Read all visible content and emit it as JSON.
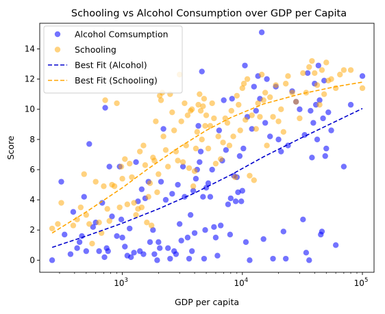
{
  "chart_data": {
    "type": "scatter",
    "title": "Schooling vs Alcohol Consumption over GDP per Capita",
    "xlabel": "GDP per capita",
    "ylabel": "Score",
    "xscale": "log",
    "xlim": [
      205,
      125000
    ],
    "ylim": [
      -0.8,
      15.7
    ],
    "grid": false,
    "legend_position": "top-left",
    "x_ticks": [
      {
        "value": 1000,
        "base": "10",
        "exp": "3"
      },
      {
        "value": 10000,
        "base": "10",
        "exp": "4"
      },
      {
        "value": 100000,
        "base": "10",
        "exp": "5"
      }
    ],
    "y_ticks": [
      "0",
      "2",
      "4",
      "6",
      "8",
      "10",
      "12",
      "14"
    ],
    "series": [
      {
        "name": "Alcohol Comsumption",
        "kind": "scatter",
        "color": "#0000ff",
        "points": [
          [
            260,
            0
          ],
          [
            310,
            5.2
          ],
          [
            330,
            1.7
          ],
          [
            370,
            0.4
          ],
          [
            390,
            3.2
          ],
          [
            420,
            0.8
          ],
          [
            440,
            1.2
          ],
          [
            460,
            1.6
          ],
          [
            480,
            4.2
          ],
          [
            500,
            0.6
          ],
          [
            530,
            7.7
          ],
          [
            570,
            2.2
          ],
          [
            600,
            2.5
          ],
          [
            640,
            0.6
          ],
          [
            680,
            3.8
          ],
          [
            710,
            0.2
          ],
          [
            720,
            10.1
          ],
          [
            740,
            0.8
          ],
          [
            760,
            0.6
          ],
          [
            780,
            6.2
          ],
          [
            820,
            2.9
          ],
          [
            900,
            1.6
          ],
          [
            950,
            6.2
          ],
          [
            980,
            2.7
          ],
          [
            1000,
            1.5
          ],
          [
            1050,
            0.9
          ],
          [
            1100,
            0.3
          ],
          [
            1150,
            2.1
          ],
          [
            1180,
            0.2
          ],
          [
            1250,
            0.5
          ],
          [
            1300,
            6.5
          ],
          [
            1350,
            3.9
          ],
          [
            1400,
            0.6
          ],
          [
            1450,
            4.7
          ],
          [
            1500,
            0.4
          ],
          [
            1550,
            4.1
          ],
          [
            1650,
            5.2
          ],
          [
            1700,
            1.2
          ],
          [
            1800,
            2.0
          ],
          [
            1850,
            0.4
          ],
          [
            1950,
            0
          ],
          [
            2000,
            1.2
          ],
          [
            2050,
            0.8
          ],
          [
            2100,
            5.2
          ],
          [
            2200,
            8.7
          ],
          [
            2300,
            4.0
          ],
          [
            2400,
            0.8
          ],
          [
            2500,
            0.1
          ],
          [
            2600,
            4.4
          ],
          [
            2700,
            0.6
          ],
          [
            2800,
            0.4
          ],
          [
            2900,
            5.0
          ],
          [
            3000,
            2.4
          ],
          [
            3100,
            1.3
          ],
          [
            3200,
            6.2
          ],
          [
            3300,
            4.2
          ],
          [
            3500,
            1.5
          ],
          [
            3600,
            0.1
          ],
          [
            3700,
            3.0
          ],
          [
            3800,
            0.6
          ],
          [
            3900,
            4.6
          ],
          [
            4000,
            1.8
          ],
          [
            4100,
            5.4
          ],
          [
            4200,
            6.0
          ],
          [
            4300,
            8.9
          ],
          [
            4400,
            6.5
          ],
          [
            4500,
            7.2
          ],
          [
            4600,
            12.5
          ],
          [
            4700,
            4.2
          ],
          [
            4800,
            0.1
          ],
          [
            4900,
            2.0
          ],
          [
            5000,
            4.8
          ],
          [
            5200,
            5.1
          ],
          [
            5400,
            4.2
          ],
          [
            5600,
            6.0
          ],
          [
            5800,
            2.2
          ],
          [
            6000,
            1.5
          ],
          [
            6200,
            0.3
          ],
          [
            6400,
            8.6
          ],
          [
            6600,
            2.3
          ],
          [
            6800,
            6.6
          ],
          [
            7000,
            10.6
          ],
          [
            7300,
            7.3
          ],
          [
            7600,
            3.7
          ],
          [
            7900,
            1.7
          ],
          [
            8000,
            4.1
          ],
          [
            8200,
            10.7
          ],
          [
            8500,
            5.6
          ],
          [
            8800,
            3.9
          ],
          [
            9000,
            5.5
          ],
          [
            9200,
            4.5
          ],
          [
            9500,
            6.9
          ],
          [
            9800,
            3.9
          ],
          [
            10000,
            4.6
          ],
          [
            10200,
            7.4
          ],
          [
            10500,
            12.9
          ],
          [
            10700,
            1.2
          ],
          [
            11000,
            9.5
          ],
          [
            11500,
            0
          ],
          [
            12000,
            8.7
          ],
          [
            12500,
            11.5
          ],
          [
            13000,
            9.9
          ],
          [
            13500,
            12.2
          ],
          [
            14000,
            10.7
          ],
          [
            14500,
            15.1
          ],
          [
            15000,
            1.4
          ],
          [
            15500,
            9.1
          ],
          [
            16000,
            12.0
          ],
          [
            17000,
            8.2
          ],
          [
            18000,
            0.1
          ],
          [
            19000,
            11.5
          ],
          [
            20000,
            8.0
          ],
          [
            21000,
            7.2
          ],
          [
            22000,
            1.9
          ],
          [
            23000,
            0.1
          ],
          [
            24000,
            7.6
          ],
          [
            26000,
            11.2
          ],
          [
            28000,
            10.5
          ],
          [
            30000,
            10.0
          ],
          [
            32000,
            2.7
          ],
          [
            33000,
            8.3
          ],
          [
            34000,
            0.5
          ],
          [
            35000,
            12.4
          ],
          [
            36000,
            0
          ],
          [
            37000,
            9.9
          ],
          [
            38000,
            6.8
          ],
          [
            39000,
            9.1
          ],
          [
            40000,
            11.7
          ],
          [
            41000,
            10.3
          ],
          [
            42000,
            8.0
          ],
          [
            43000,
            12.9
          ],
          [
            44000,
            10.6
          ],
          [
            45000,
            1.7
          ],
          [
            46000,
            1.9
          ],
          [
            47000,
            9.4
          ],
          [
            48000,
            11.9
          ],
          [
            49000,
            6.9
          ],
          [
            50000,
            7.4
          ],
          [
            52000,
            9.8
          ],
          [
            55000,
            8.6
          ],
          [
            60000,
            1.0
          ],
          [
            70000,
            6.2
          ],
          [
            80000,
            10.3
          ],
          [
            100000,
            12.2
          ]
        ]
      },
      {
        "name": "Schooling",
        "kind": "scatter",
        "color": "#ffa500",
        "points": [
          [
            260,
            2.1
          ],
          [
            290,
            2.4
          ],
          [
            310,
            3.8
          ],
          [
            390,
            2.3
          ],
          [
            420,
            2.7
          ],
          [
            450,
            3.5
          ],
          [
            480,
            5.7
          ],
          [
            500,
            3.0
          ],
          [
            530,
            2.4
          ],
          [
            560,
            1.1
          ],
          [
            600,
            5.2
          ],
          [
            640,
            2.5
          ],
          [
            670,
            1.8
          ],
          [
            700,
            4.9
          ],
          [
            720,
            10.6
          ],
          [
            750,
            3.4
          ],
          [
            780,
            2.6
          ],
          [
            820,
            5.0
          ],
          [
            860,
            4.9
          ],
          [
            900,
            10.4
          ],
          [
            950,
            3.5
          ],
          [
            980,
            6.2
          ],
          [
            1000,
            5.4
          ],
          [
            1050,
            6.7
          ],
          [
            1100,
            3.7
          ],
          [
            1150,
            6.4
          ],
          [
            1200,
            5.5
          ],
          [
            1250,
            3.8
          ],
          [
            1300,
            3.0
          ],
          [
            1350,
            3.4
          ],
          [
            1400,
            7.2
          ],
          [
            1450,
            3.5
          ],
          [
            1500,
            7.6
          ],
          [
            1550,
            6.3
          ],
          [
            1600,
            2.5
          ],
          [
            1650,
            4.2
          ],
          [
            1700,
            5.1
          ],
          [
            1750,
            2.3
          ],
          [
            1800,
            6.8
          ],
          [
            1850,
            6.6
          ],
          [
            1900,
            9.2
          ],
          [
            1950,
            4.5
          ],
          [
            2000,
            5.7
          ],
          [
            2050,
            10.9
          ],
          [
            2100,
            10.6
          ],
          [
            2150,
            11.1
          ],
          [
            2200,
            8.2
          ],
          [
            2300,
            7.3
          ],
          [
            2400,
            6.2
          ],
          [
            2500,
            11.0
          ],
          [
            2600,
            9.8
          ],
          [
            2700,
            8.6
          ],
          [
            2800,
            7.2
          ],
          [
            2900,
            6.6
          ],
          [
            3000,
            12.3
          ],
          [
            3100,
            9.2
          ],
          [
            3200,
            6.5
          ],
          [
            3300,
            10.4
          ],
          [
            3400,
            7.6
          ],
          [
            3500,
            9.6
          ],
          [
            3600,
            6.1
          ],
          [
            3700,
            9.9
          ],
          [
            3800,
            10.0
          ],
          [
            3900,
            4.9
          ],
          [
            4000,
            5.9
          ],
          [
            4100,
            7.4
          ],
          [
            4200,
            8.5
          ],
          [
            4300,
            10.3
          ],
          [
            4400,
            11.0
          ],
          [
            4500,
            9.9
          ],
          [
            4600,
            8.0
          ],
          [
            4700,
            10.2
          ],
          [
            4800,
            10.7
          ],
          [
            4900,
            8.9
          ],
          [
            5000,
            9.6
          ],
          [
            5200,
            7.4
          ],
          [
            5400,
            8.9
          ],
          [
            5600,
            10.4
          ],
          [
            5800,
            9.4
          ],
          [
            6000,
            6.4
          ],
          [
            6300,
            8.2
          ],
          [
            6600,
            6.7
          ],
          [
            6900,
            7.8
          ],
          [
            7200,
            9.4
          ],
          [
            7500,
            9.1
          ],
          [
            7800,
            7.6
          ],
          [
            8100,
            9.9
          ],
          [
            8400,
            8.2
          ],
          [
            8700,
            5.5
          ],
          [
            9000,
            10.9
          ],
          [
            9300,
            10.3
          ],
          [
            9600,
            8.6
          ],
          [
            10000,
            11.4
          ],
          [
            10300,
            11.7
          ],
          [
            10600,
            9.3
          ],
          [
            11000,
            12.0
          ],
          [
            11500,
            5.6
          ],
          [
            12000,
            9.6
          ],
          [
            12500,
            5.3
          ],
          [
            13000,
            8.7
          ],
          [
            13500,
            10.4
          ],
          [
            14000,
            9.5
          ],
          [
            14500,
            12.3
          ],
          [
            15000,
            10.6
          ],
          [
            15500,
            11.1
          ],
          [
            16000,
            7.6
          ],
          [
            17000,
            10.8
          ],
          [
            18000,
            9.5
          ],
          [
            19000,
            11.6
          ],
          [
            20000,
            9.2
          ],
          [
            21000,
            10.0
          ],
          [
            22000,
            8.5
          ],
          [
            23000,
            11.7
          ],
          [
            24000,
            12.2
          ],
          [
            26000,
            11.1
          ],
          [
            28000,
            10.5
          ],
          [
            30000,
            9.4
          ],
          [
            32000,
            12.4
          ],
          [
            34000,
            11.1
          ],
          [
            36000,
            12.8
          ],
          [
            38000,
            13.2
          ],
          [
            40000,
            12.4
          ],
          [
            42000,
            11.6
          ],
          [
            44000,
            10.3
          ],
          [
            46000,
            12.6
          ],
          [
            48000,
            11.0
          ],
          [
            50000,
            13.1
          ],
          [
            52000,
            11.9
          ],
          [
            55000,
            12.0
          ],
          [
            60000,
            11.4
          ],
          [
            65000,
            12.3
          ],
          [
            70000,
            12.6
          ],
          [
            80000,
            12.6
          ],
          [
            100000,
            11.4
          ]
        ]
      },
      {
        "name": "Best Fit (Alcohol)",
        "kind": "line",
        "style": "dashed",
        "color": "#0000cd",
        "points": [
          [
            260,
            0.85
          ],
          [
            500,
            1.6
          ],
          [
            1000,
            2.45
          ],
          [
            2000,
            3.4
          ],
          [
            4000,
            4.45
          ],
          [
            8000,
            5.65
          ],
          [
            15000,
            6.85
          ],
          [
            30000,
            8.05
          ],
          [
            60000,
            9.2
          ],
          [
            100000,
            10.05
          ]
        ]
      },
      {
        "name": "Best Fit (Schooling)",
        "kind": "line",
        "style": "dashed",
        "color": "#ffa500",
        "points": [
          [
            260,
            1.8
          ],
          [
            500,
            3.2
          ],
          [
            1000,
            4.8
          ],
          [
            1600,
            6.0
          ],
          [
            3000,
            7.5
          ],
          [
            5000,
            8.6
          ],
          [
            8000,
            9.45
          ],
          [
            15000,
            10.35
          ],
          [
            30000,
            11.0
          ],
          [
            60000,
            11.5
          ],
          [
            100000,
            11.8
          ]
        ]
      }
    ]
  }
}
